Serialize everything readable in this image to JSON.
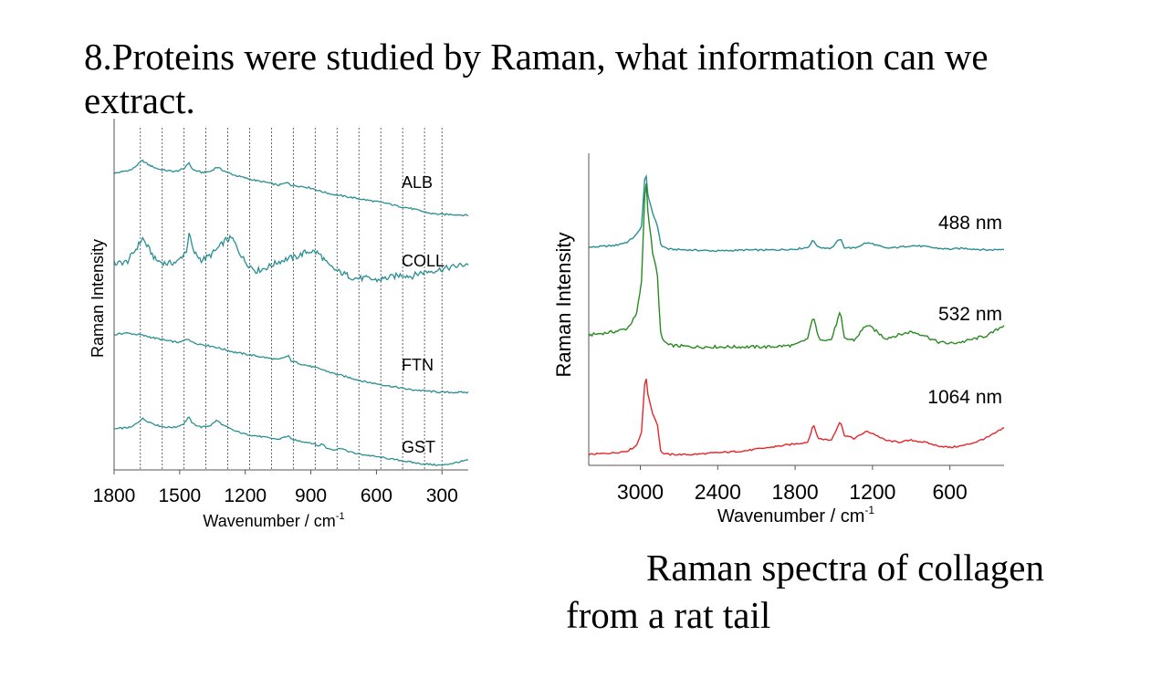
{
  "title": "8.Proteins were studied by Raman, what information can we extract.",
  "caption": {
    "line1": "Raman spectra of collagen",
    "line2": "from a rat tail"
  },
  "colors": {
    "teal": "#2a8f93",
    "green": "#2a8a22",
    "red": "#e8262a",
    "grid": "#555555"
  },
  "chart_data": [
    {
      "type": "line",
      "xlabel": "Wavenumber / cm",
      "xlabel_sup": "-1",
      "ylabel": "Raman Intensity",
      "xlim": [
        1800,
        180
      ],
      "xticks": [
        1800,
        1500,
        1200,
        900,
        600,
        300
      ],
      "grid_lines_x": [
        1680,
        1580,
        1480,
        1380,
        1280,
        1180,
        1080,
        980,
        880,
        780,
        680,
        580,
        480,
        380,
        300
      ],
      "series": [
        {
          "name": "ALB",
          "points": [
            [
              1800,
              50
            ],
            [
              1720,
              54
            ],
            [
              1670,
              64
            ],
            [
              1640,
              59
            ],
            [
              1600,
              55
            ],
            [
              1560,
              53
            ],
            [
              1520,
              52
            ],
            [
              1480,
              55
            ],
            [
              1460,
              62
            ],
            [
              1440,
              54
            ],
            [
              1400,
              51
            ],
            [
              1360,
              52
            ],
            [
              1330,
              57
            ],
            [
              1300,
              53
            ],
            [
              1250,
              48
            ],
            [
              1200,
              45
            ],
            [
              1150,
              42
            ],
            [
              1100,
              40
            ],
            [
              1050,
              37
            ],
            [
              1003,
              40
            ],
            [
              990,
              37
            ],
            [
              950,
              36
            ],
            [
              900,
              34
            ],
            [
              850,
              30
            ],
            [
              800,
              27
            ],
            [
              750,
              25
            ],
            [
              700,
              23
            ],
            [
              650,
              21
            ],
            [
              600,
              19
            ],
            [
              550,
              17
            ],
            [
              500,
              14
            ],
            [
              450,
              12
            ],
            [
              400,
              9
            ],
            [
              350,
              6
            ],
            [
              300,
              5
            ],
            [
              250,
              5
            ],
            [
              180,
              4
            ]
          ]
        },
        {
          "name": "COLL",
          "points": [
            [
              1800,
              46
            ],
            [
              1740,
              48
            ],
            [
              1700,
              62
            ],
            [
              1670,
              74
            ],
            [
              1650,
              66
            ],
            [
              1610,
              50
            ],
            [
              1560,
              46
            ],
            [
              1510,
              48
            ],
            [
              1470,
              60
            ],
            [
              1455,
              80
            ],
            [
              1440,
              60
            ],
            [
              1400,
              50
            ],
            [
              1360,
              55
            ],
            [
              1320,
              64
            ],
            [
              1290,
              72
            ],
            [
              1260,
              74
            ],
            [
              1230,
              60
            ],
            [
              1200,
              48
            ],
            [
              1150,
              38
            ],
            [
              1100,
              42
            ],
            [
              1050,
              48
            ],
            [
              1000,
              52
            ],
            [
              960,
              54
            ],
            [
              930,
              58
            ],
            [
              900,
              60
            ],
            [
              870,
              58
            ],
            [
              850,
              54
            ],
            [
              820,
              44
            ],
            [
              780,
              38
            ],
            [
              740,
              34
            ],
            [
              700,
              30
            ],
            [
              650,
              30
            ],
            [
              600,
              28
            ],
            [
              560,
              30
            ],
            [
              520,
              32
            ],
            [
              480,
              34
            ],
            [
              440,
              32
            ],
            [
              400,
              36
            ],
            [
              350,
              38
            ],
            [
              300,
              40
            ],
            [
              260,
              42
            ],
            [
              220,
              44
            ],
            [
              180,
              46
            ]
          ]
        },
        {
          "name": "FTN",
          "points": [
            [
              1800,
              60
            ],
            [
              1750,
              62
            ],
            [
              1680,
              60
            ],
            [
              1620,
              57
            ],
            [
              1560,
              54
            ],
            [
              1500,
              52
            ],
            [
              1460,
              56
            ],
            [
              1440,
              52
            ],
            [
              1400,
              50
            ],
            [
              1350,
              48
            ],
            [
              1300,
              45
            ],
            [
              1250,
              42
            ],
            [
              1200,
              40
            ],
            [
              1150,
              38
            ],
            [
              1100,
              36
            ],
            [
              1050,
              34
            ],
            [
              1003,
              38
            ],
            [
              990,
              33
            ],
            [
              950,
              30
            ],
            [
              900,
              27
            ],
            [
              850,
              24
            ],
            [
              800,
              20
            ],
            [
              750,
              17
            ],
            [
              700,
              14
            ],
            [
              650,
              11
            ],
            [
              600,
              9
            ],
            [
              550,
              7
            ],
            [
              500,
              5
            ],
            [
              450,
              3
            ],
            [
              400,
              2
            ],
            [
              350,
              1
            ],
            [
              300,
              0
            ],
            [
              250,
              0
            ],
            [
              180,
              0
            ]
          ]
        },
        {
          "name": "GST",
          "points": [
            [
              1800,
              42
            ],
            [
              1720,
              44
            ],
            [
              1670,
              54
            ],
            [
              1640,
              50
            ],
            [
              1600,
              46
            ],
            [
              1560,
              44
            ],
            [
              1520,
              44
            ],
            [
              1480,
              48
            ],
            [
              1460,
              56
            ],
            [
              1440,
              48
            ],
            [
              1400,
              44
            ],
            [
              1360,
              46
            ],
            [
              1330,
              52
            ],
            [
              1300,
              46
            ],
            [
              1250,
              40
            ],
            [
              1200,
              36
            ],
            [
              1150,
              34
            ],
            [
              1100,
              32
            ],
            [
              1050,
              30
            ],
            [
              1003,
              34
            ],
            [
              990,
              30
            ],
            [
              950,
              28
            ],
            [
              900,
              26
            ],
            [
              860,
              22
            ],
            [
              850,
              26
            ],
            [
              830,
              20
            ],
            [
              790,
              18
            ],
            [
              760,
              20
            ],
            [
              740,
              17
            ],
            [
              700,
              14
            ],
            [
              650,
              12
            ],
            [
              600,
              10
            ],
            [
              550,
              8
            ],
            [
              500,
              6
            ],
            [
              450,
              4
            ],
            [
              400,
              2
            ],
            [
              350,
              1
            ],
            [
              300,
              0
            ],
            [
              260,
              2
            ],
            [
              220,
              4
            ],
            [
              180,
              6
            ]
          ]
        }
      ]
    },
    {
      "type": "line",
      "xlabel": "Wavenumber / cm",
      "xlabel_sup": "-1",
      "ylabel": "Raman Intensity",
      "xlim": [
        3400,
        180
      ],
      "xticks": [
        3000,
        2400,
        1800,
        1200,
        600
      ],
      "series": [
        {
          "name": "488 nm",
          "points": [
            [
              3400,
              4
            ],
            [
              3200,
              6
            ],
            [
              3100,
              10
            ],
            [
              3030,
              18
            ],
            [
              2990,
              28
            ],
            [
              2960,
              94
            ],
            [
              2940,
              60
            ],
            [
              2900,
              40
            ],
            [
              2870,
              30
            ],
            [
              2840,
              6
            ],
            [
              2780,
              2
            ],
            [
              2600,
              1
            ],
            [
              2400,
              0
            ],
            [
              2200,
              1
            ],
            [
              2000,
              1
            ],
            [
              1800,
              2
            ],
            [
              1700,
              4
            ],
            [
              1660,
              12
            ],
            [
              1620,
              4
            ],
            [
              1520,
              3
            ],
            [
              1450,
              14
            ],
            [
              1420,
              4
            ],
            [
              1340,
              3
            ],
            [
              1250,
              9
            ],
            [
              1200,
              8
            ],
            [
              1100,
              3
            ],
            [
              1000,
              4
            ],
            [
              900,
              6
            ],
            [
              800,
              5
            ],
            [
              700,
              3
            ],
            [
              600,
              2
            ],
            [
              500,
              3
            ],
            [
              400,
              2
            ],
            [
              300,
              1
            ],
            [
              180,
              2
            ]
          ]
        },
        {
          "name": "532 nm",
          "points": [
            [
              3400,
              8
            ],
            [
              3200,
              10
            ],
            [
              3100,
              12
            ],
            [
              3030,
              20
            ],
            [
              2990,
              40
            ],
            [
              2960,
              105
            ],
            [
              2940,
              80
            ],
            [
              2900,
              54
            ],
            [
              2870,
              46
            ],
            [
              2840,
              6
            ],
            [
              2780,
              2
            ],
            [
              2600,
              1
            ],
            [
              2400,
              1
            ],
            [
              2200,
              1
            ],
            [
              2000,
              1
            ],
            [
              1800,
              2
            ],
            [
              1700,
              6
            ],
            [
              1660,
              20
            ],
            [
              1620,
              6
            ],
            [
              1520,
              5
            ],
            [
              1450,
              22
            ],
            [
              1420,
              6
            ],
            [
              1340,
              5
            ],
            [
              1250,
              14
            ],
            [
              1200,
              12
            ],
            [
              1100,
              6
            ],
            [
              1000,
              8
            ],
            [
              900,
              10
            ],
            [
              800,
              8
            ],
            [
              700,
              4
            ],
            [
              600,
              3
            ],
            [
              500,
              4
            ],
            [
              400,
              6
            ],
            [
              300,
              8
            ],
            [
              180,
              14
            ]
          ]
        },
        {
          "name": "1064 nm",
          "points": [
            [
              3400,
              4
            ],
            [
              3200,
              6
            ],
            [
              3100,
              8
            ],
            [
              3030,
              14
            ],
            [
              2990,
              30
            ],
            [
              2960,
              98
            ],
            [
              2940,
              70
            ],
            [
              2900,
              48
            ],
            [
              2870,
              40
            ],
            [
              2840,
              6
            ],
            [
              2780,
              4
            ],
            [
              2600,
              4
            ],
            [
              2400,
              6
            ],
            [
              2200,
              8
            ],
            [
              2000,
              12
            ],
            [
              1800,
              16
            ],
            [
              1700,
              18
            ],
            [
              1660,
              38
            ],
            [
              1620,
              22
            ],
            [
              1520,
              20
            ],
            [
              1450,
              42
            ],
            [
              1420,
              26
            ],
            [
              1340,
              22
            ],
            [
              1250,
              30
            ],
            [
              1200,
              28
            ],
            [
              1100,
              20
            ],
            [
              1000,
              18
            ],
            [
              900,
              20
            ],
            [
              800,
              18
            ],
            [
              700,
              14
            ],
            [
              600,
              12
            ],
            [
              500,
              14
            ],
            [
              400,
              18
            ],
            [
              300,
              24
            ],
            [
              180,
              34
            ]
          ]
        }
      ]
    }
  ]
}
